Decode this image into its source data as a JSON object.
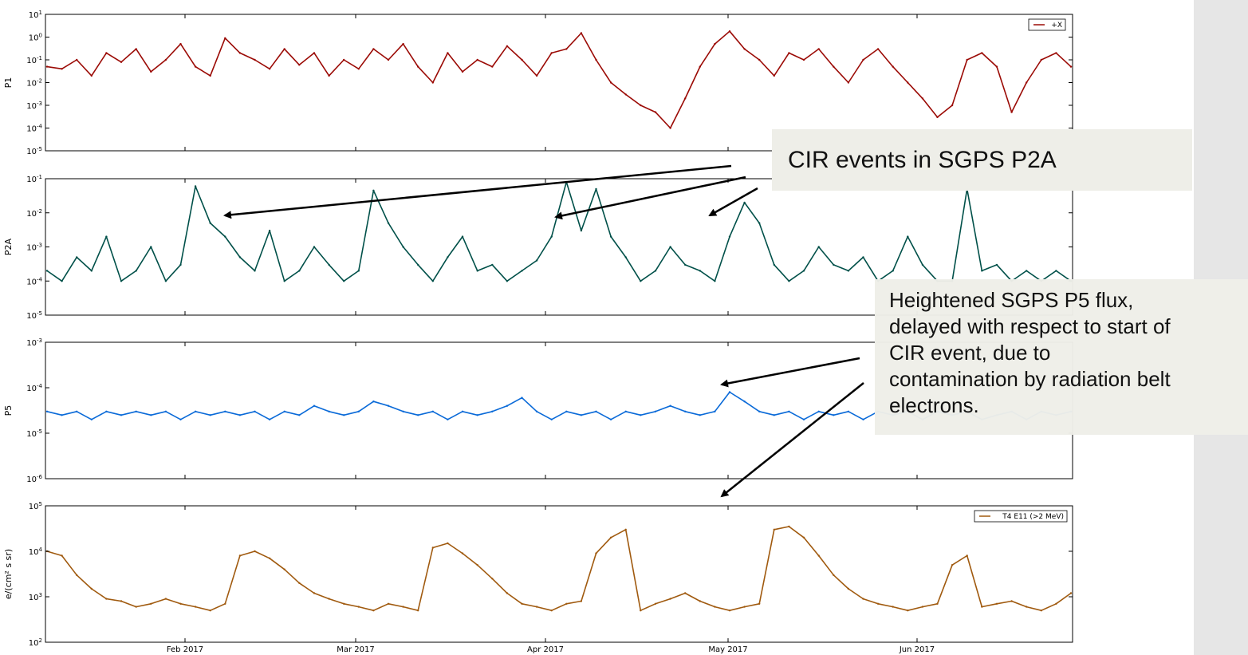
{
  "chart_data": [
    {
      "type": "line",
      "ylabel": "P1",
      "yscale": "log",
      "ylim": [
        1e-05,
        10
      ],
      "yticks": [
        "10^-5",
        "10^-4",
        "10^-3",
        "10^-2",
        "10^-1",
        "10^0",
        "10^1"
      ],
      "series": [
        {
          "name": "+X",
          "color": "#9b0a05",
          "values": [
            0.05,
            0.04,
            0.1,
            0.02,
            0.2,
            0.08,
            0.3,
            0.03,
            0.1,
            0.5,
            0.05,
            0.02,
            0.9,
            0.2,
            0.1,
            0.04,
            0.3,
            0.06,
            0.2,
            0.02,
            0.1,
            0.04,
            0.3,
            0.1,
            0.5,
            0.05,
            0.01,
            0.2,
            0.03,
            0.1,
            0.05,
            0.4,
            0.1,
            0.02,
            0.2,
            0.3,
            1.5,
            0.1,
            0.01,
            0.003,
            0.001,
            0.0005,
            0.0001,
            0.002,
            0.05,
            0.5,
            1.8,
            0.3,
            0.1,
            0.02,
            0.2,
            0.1,
            0.3,
            0.05,
            0.01,
            0.1,
            0.3,
            0.05,
            0.01,
            0.002,
            0.0003,
            0.001,
            0.1,
            0.2,
            0.05,
            0.0005,
            0.01,
            0.1,
            0.2,
            0.05
          ]
        }
      ]
    },
    {
      "type": "line",
      "ylabel": "P2A",
      "yscale": "log",
      "ylim": [
        1e-05,
        0.1
      ],
      "yticks": [
        "10^-5",
        "10^-4",
        "10^-3",
        "10^-2",
        "10^-1"
      ],
      "series": [
        {
          "color": "#005049",
          "values": [
            0.0002,
            0.0001,
            0.0005,
            0.0002,
            0.002,
            0.0001,
            0.0002,
            0.001,
            0.0001,
            0.0003,
            0.06,
            0.005,
            0.002,
            0.0005,
            0.0002,
            0.003,
            0.0001,
            0.0002,
            0.001,
            0.0003,
            0.0001,
            0.0002,
            0.045,
            0.005,
            0.001,
            0.0003,
            0.0001,
            0.0005,
            0.002,
            0.0002,
            0.0003,
            0.0001,
            0.0002,
            0.0004,
            0.002,
            0.08,
            0.003,
            0.05,
            0.002,
            0.0005,
            0.0001,
            0.0002,
            0.001,
            0.0003,
            0.0002,
            0.0001,
            0.002,
            0.02,
            0.005,
            0.0003,
            0.0001,
            0.0002,
            0.001,
            0.0003,
            0.0002,
            0.0005,
            0.0001,
            0.0002,
            0.002,
            0.0003,
            0.0001,
            0.0001,
            0.05,
            0.0002,
            0.0003,
            0.0001,
            0.0002,
            0.0001,
            0.0002,
            0.0001
          ]
        }
      ]
    },
    {
      "type": "line",
      "ylabel": "P5",
      "yscale": "log",
      "ylim": [
        1e-06,
        0.001
      ],
      "yticks": [
        "10^-6",
        "10^-5",
        "10^-4",
        "10^-3"
      ],
      "series": [
        {
          "color": "#0a6ad8",
          "values": [
            3e-05,
            2.5e-05,
            3e-05,
            2e-05,
            3e-05,
            2.5e-05,
            3e-05,
            2.5e-05,
            3e-05,
            2e-05,
            3e-05,
            2.5e-05,
            3e-05,
            2.5e-05,
            3e-05,
            2e-05,
            3e-05,
            2.5e-05,
            4e-05,
            3e-05,
            2.5e-05,
            3e-05,
            5e-05,
            4e-05,
            3e-05,
            2.5e-05,
            3e-05,
            2e-05,
            3e-05,
            2.5e-05,
            3e-05,
            4e-05,
            6e-05,
            3e-05,
            2e-05,
            3e-05,
            2.5e-05,
            3e-05,
            2e-05,
            3e-05,
            2.5e-05,
            3e-05,
            4e-05,
            3e-05,
            2.5e-05,
            3e-05,
            8e-05,
            5e-05,
            3e-05,
            2.5e-05,
            3e-05,
            2e-05,
            3e-05,
            2.5e-05,
            3e-05,
            2e-05,
            3e-05,
            2.5e-05,
            3e-05,
            2e-05,
            3e-05,
            2.5e-05,
            3e-05,
            2e-05,
            2.5e-05,
            3e-05,
            2e-05,
            3e-05,
            2.5e-05,
            3e-05
          ]
        }
      ]
    },
    {
      "type": "line",
      "ylabel": "e/(cm² s sr)",
      "yscale": "log",
      "ylim": [
        100,
        100000
      ],
      "yticks": [
        "10^2",
        "10^3",
        "10^4",
        "10^5"
      ],
      "xticks": [
        "Feb 2017",
        "Mar 2017",
        "Apr 2017",
        "May 2017",
        "Jun 2017"
      ],
      "series": [
        {
          "name": "T4 E11 (>2 MeV)",
          "color": "#a05a0f",
          "values": [
            10000,
            8000,
            3000,
            1500,
            900,
            800,
            600,
            700,
            900,
            700,
            600,
            500,
            700,
            8000,
            10000,
            7000,
            4000,
            2000,
            1200,
            900,
            700,
            600,
            500,
            700,
            600,
            500,
            12000,
            15000,
            9000,
            5000,
            2500,
            1200,
            700,
            600,
            500,
            700,
            800,
            9000,
            20000,
            30000,
            500,
            700,
            900,
            1200,
            800,
            600,
            500,
            600,
            700,
            30000,
            35000,
            20000,
            8000,
            3000,
            1500,
            900,
            700,
            600,
            500,
            600,
            700,
            5000,
            8000,
            600,
            700,
            800,
            600,
            500,
            700,
            1200
          ]
        }
      ]
    }
  ],
  "annotations": {
    "cir_callout": "CIR events in SGPS P2A",
    "p5_callout": [
      "Heightened SGPS P5 flux,",
      "delayed with respect to start of",
      "CIR event, due to",
      "contamination by radiation belt",
      "electrons."
    ]
  }
}
